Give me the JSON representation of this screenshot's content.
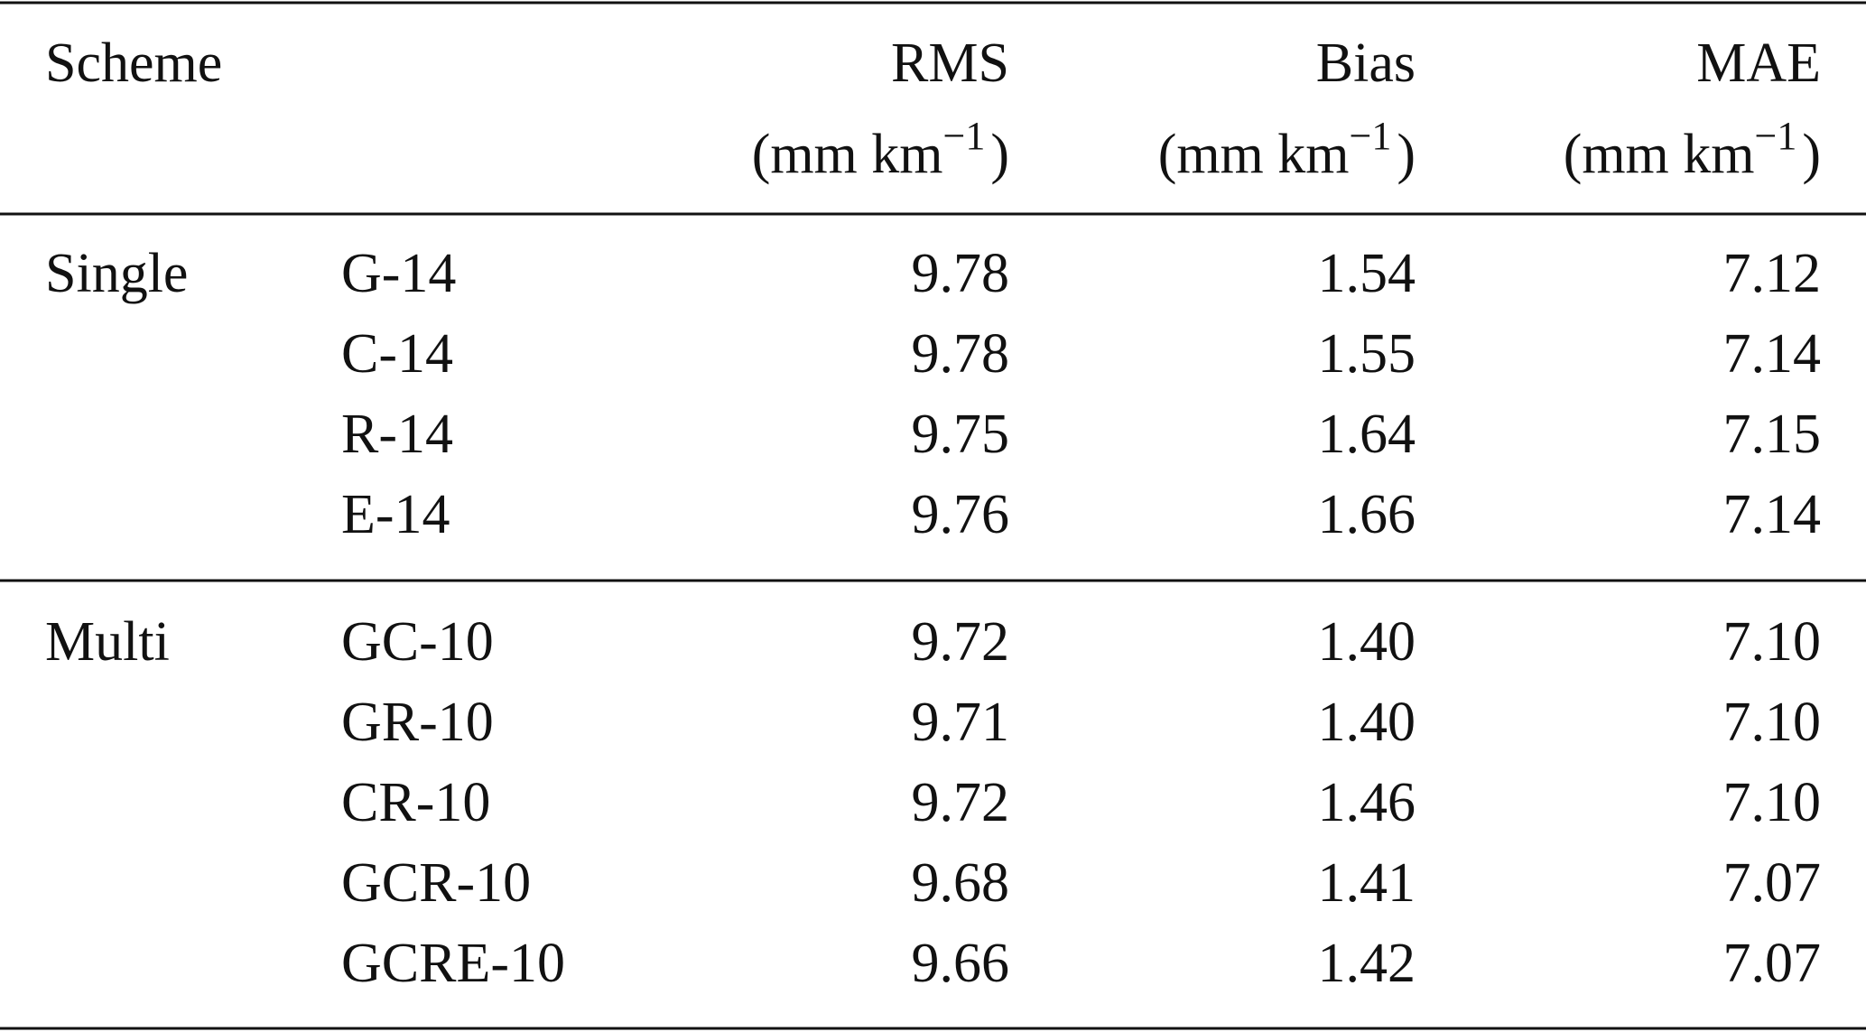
{
  "header": {
    "scheme": "Scheme",
    "metrics": [
      {
        "label": "RMS",
        "unit": [
          "(mm km",
          "−1",
          ")"
        ]
      },
      {
        "label": "Bias",
        "unit": [
          "(mm km",
          "−1",
          ")"
        ]
      },
      {
        "label": "MAE",
        "unit": [
          "(mm km",
          "−1",
          ")"
        ]
      }
    ]
  },
  "groups": [
    {
      "name": "Single",
      "rows": [
        [
          "G-14",
          "9.78",
          "1.54",
          "7.12"
        ],
        [
          "C-14",
          "9.78",
          "1.55",
          "7.14"
        ],
        [
          "R-14",
          "9.75",
          "1.64",
          "7.15"
        ],
        [
          "E-14",
          "9.76",
          "1.66",
          "7.14"
        ]
      ]
    },
    {
      "name": "Multi",
      "rows": [
        [
          "GC-10",
          "9.72",
          "1.40",
          "7.10"
        ],
        [
          "GR-10",
          "9.71",
          "1.40",
          "7.10"
        ],
        [
          "CR-10",
          "9.72",
          "1.46",
          "7.10"
        ],
        [
          "GCR-10",
          "9.68",
          "1.41",
          "7.07"
        ],
        [
          "GCRE-10",
          "9.66",
          "1.42",
          "7.07"
        ]
      ]
    }
  ]
}
